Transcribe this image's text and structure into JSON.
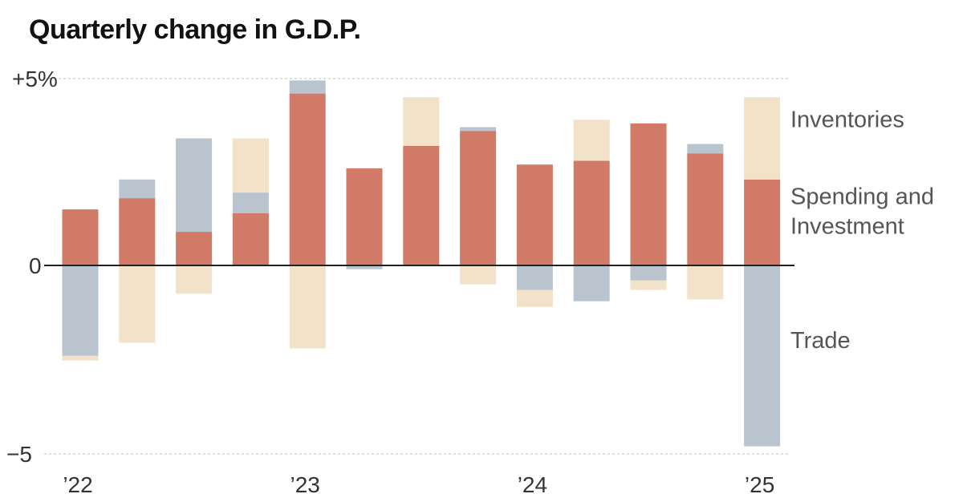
{
  "title": "Quarterly change in G.D.P.",
  "colors": {
    "Inventories": "#f2e2c9",
    "Spending and Investment": "#d27a68",
    "Trade": "#b9c4cf",
    "zero_line": "#222222",
    "grid": "#cccccc"
  },
  "chart_data": {
    "type": "bar",
    "stacked": true,
    "title": "Quarterly change in G.D.P.",
    "xlabel": "",
    "ylabel": "",
    "ylim": [
      -5,
      5
    ],
    "y_ticks": [
      {
        "value": 5,
        "label": "+5%"
      },
      {
        "value": 0,
        "label": "0"
      },
      {
        "value": -5,
        "label": "−5"
      }
    ],
    "x_tick_labels": [
      {
        "index": 0,
        "label": "’22"
      },
      {
        "index": 4,
        "label": "’23"
      },
      {
        "index": 8,
        "label": "’24"
      },
      {
        "index": 12,
        "label": "’25"
      }
    ],
    "grid": true,
    "categories": [
      "2022 Q1",
      "2022 Q2",
      "2022 Q3",
      "2022 Q4",
      "2023 Q1",
      "2023 Q2",
      "2023 Q3",
      "2023 Q4",
      "2024 Q1",
      "2024 Q2",
      "2024 Q3",
      "2024 Q4",
      "2025 Q1"
    ],
    "series": [
      {
        "name": "Spending and Investment",
        "values": [
          1.5,
          1.8,
          0.9,
          1.4,
          4.6,
          2.6,
          3.2,
          3.6,
          2.7,
          2.8,
          3.8,
          3.0,
          2.3
        ]
      },
      {
        "name": "Trade",
        "values": [
          -2.4,
          0.5,
          2.5,
          0.55,
          0.35,
          -0.1,
          0.0,
          0.1,
          -0.65,
          -0.95,
          -0.4,
          0.25,
          -4.8
        ]
      },
      {
        "name": "Inventories",
        "values": [
          -0.12,
          -2.05,
          -0.75,
          1.45,
          -2.2,
          0.0,
          1.3,
          -0.5,
          -0.45,
          1.1,
          -0.25,
          -0.9,
          2.2
        ]
      }
    ],
    "legend_labels": [
      {
        "series": "Inventories",
        "label": "Inventories"
      },
      {
        "series": "Spending and Investment",
        "label": "Spending and\nInvestment"
      },
      {
        "series": "Trade",
        "label": "Trade"
      }
    ],
    "legend_placement": "right"
  }
}
